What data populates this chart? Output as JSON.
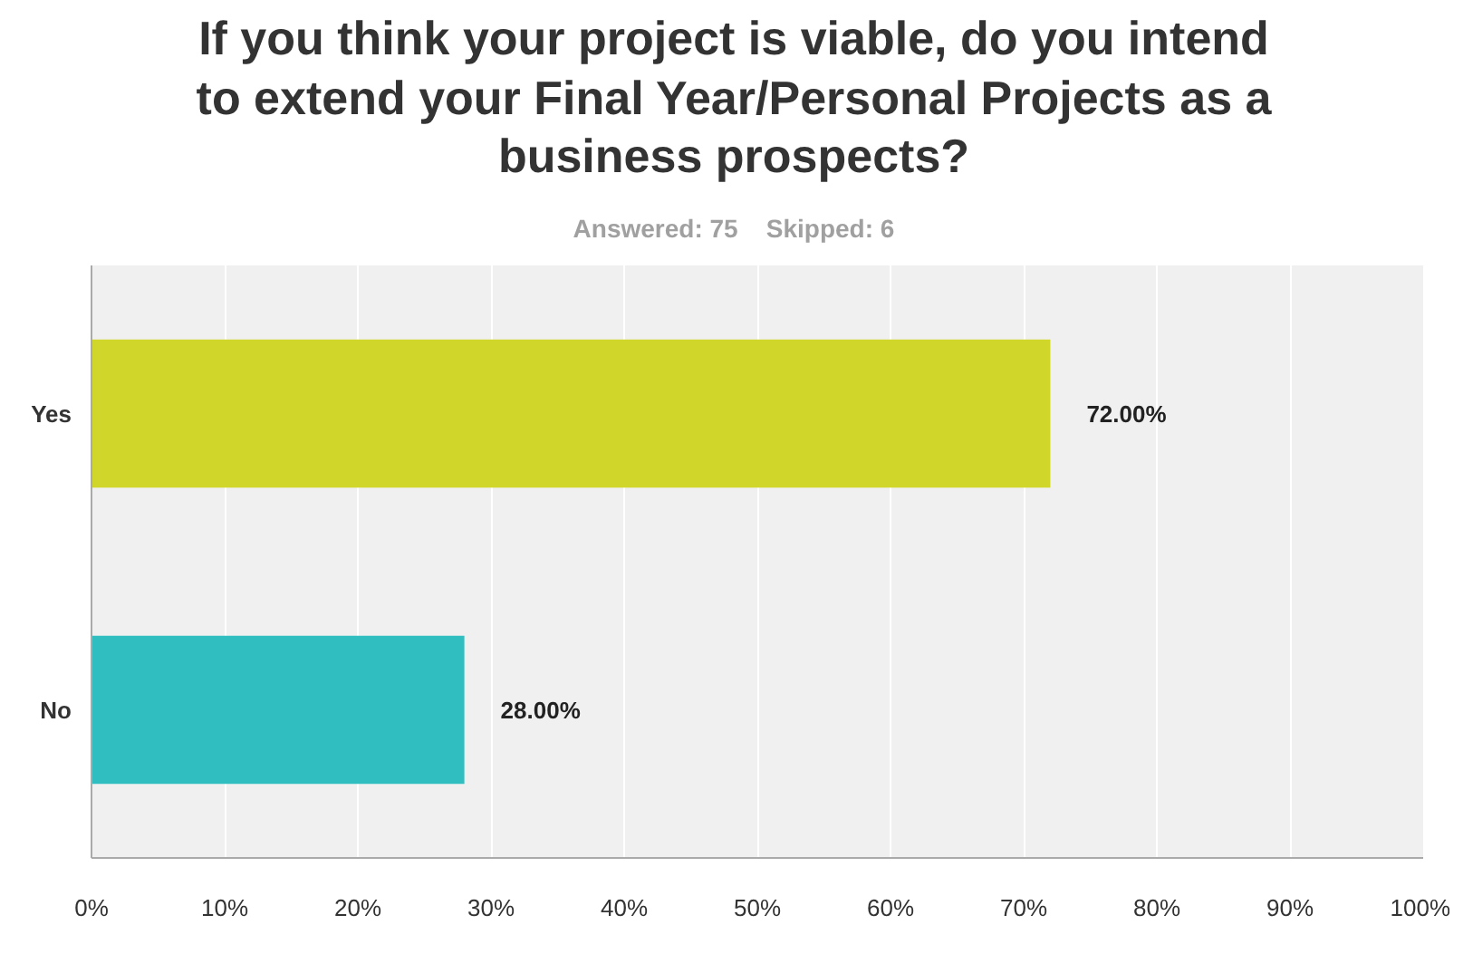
{
  "chart_data": {
    "type": "bar",
    "orientation": "horizontal",
    "title": "If you think your project is viable, do you intend to extend your Final Year/Personal Projects as a business prospects?",
    "subtitle": "Answered: 75    Skipped: 6",
    "categories": [
      "Yes",
      "No"
    ],
    "values": [
      72,
      28
    ],
    "colors": [
      "#d0d62a",
      "#30bec0"
    ],
    "value_labels": [
      "72.00%",
      "28.00%"
    ],
    "xlim": [
      0,
      100
    ],
    "xticks": [
      {
        "value": 0,
        "label": "0%"
      },
      {
        "value": 10,
        "label": "10%"
      },
      {
        "value": 20,
        "label": "20%"
      },
      {
        "value": 30,
        "label": "30%"
      },
      {
        "value": 40,
        "label": "40%"
      },
      {
        "value": 50,
        "label": "50%"
      },
      {
        "value": 60,
        "label": "60%"
      },
      {
        "value": 70,
        "label": "70%"
      },
      {
        "value": 80,
        "label": "80%"
      },
      {
        "value": 90,
        "label": "90%"
      },
      {
        "value": 100,
        "label": "100%"
      }
    ],
    "grid": "x"
  }
}
